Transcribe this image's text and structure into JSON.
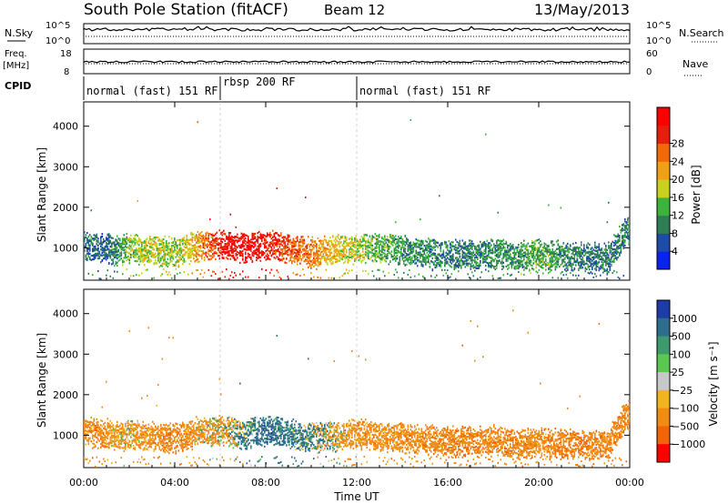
{
  "header": {
    "title": "South Pole Station (fitACF)",
    "beam": "Beam 12",
    "date": "13/May/2013"
  },
  "top_panels": {
    "nsky_label": "N.Sky",
    "nsearch_label": "N.Search",
    "n_ticks": [
      "10^5",
      "10^0"
    ],
    "freq_label_line1": "Freq.",
    "freq_label_line2": "[MHz]",
    "freq_ticks": [
      "18",
      "8"
    ],
    "nave_label": "Nave",
    "nave_ticks": [
      "60",
      "0"
    ],
    "cpid_label": "CPID",
    "cpid_segments": [
      {
        "label": "normal (fast) 151 RF",
        "start_hour": 0,
        "end_hour": 6
      },
      {
        "label": "rbsp 200 RF",
        "start_hour": 6,
        "end_hour": 12
      },
      {
        "label": "normal (fast) 151 RF",
        "start_hour": 12,
        "end_hour": 24
      }
    ]
  },
  "axes": {
    "ylabel": "Slant Range [km]",
    "xlabel": "Time UT",
    "x_ticks": [
      "00:00",
      "04:00",
      "08:00",
      "12:00",
      "16:00",
      "20:00",
      "00:00"
    ],
    "y_ticks": [
      "1000",
      "2000",
      "3000",
      "4000"
    ]
  },
  "power_colorbar": {
    "label": "Power [dB]",
    "ticks": [
      "4",
      "8",
      "12",
      "16",
      "20",
      "24",
      "28"
    ],
    "colors": [
      "#0a22ee",
      "#1e4aa8",
      "#2e7d55",
      "#3cb43c",
      "#c8d21e",
      "#f0a014",
      "#f06a0a",
      "#e61e0a",
      "#ff0000"
    ]
  },
  "velocity_colorbar": {
    "label": "Velocity [m s⁻¹]",
    "ticks": [
      "1000",
      "500",
      "100",
      "25",
      "−25",
      "−100",
      "−500",
      "−1000"
    ],
    "colors": [
      "#1e3ca8",
      "#2e6e8c",
      "#3c9a6e",
      "#5ac850",
      "#c8c8c8",
      "#f0b41e",
      "#f08c14",
      "#f0640a",
      "#ff0000"
    ]
  },
  "chart_data": [
    {
      "type": "heatmap",
      "title": "",
      "xlabel": "Time UT",
      "ylabel": "Slant Range [km]",
      "xlim": [
        0,
        24
      ],
      "ylim": [
        200,
        4600
      ],
      "colorbar": "Power [dB]",
      "clim": [
        0,
        32
      ],
      "series": [
        {
          "hours": [
            0.2,
            0.8,
            1.5,
            2.0,
            3.0,
            4.0,
            5.0,
            6.0,
            7.0,
            8.0,
            9.0,
            10.0,
            11.0,
            12.0,
            13.0,
            14.0,
            15.0,
            16.0,
            17.0,
            18.0,
            19.0,
            20.0,
            21.0,
            22.0,
            23.0,
            23.8
          ],
          "range_km": [
            1050,
            1000,
            950,
            1000,
            950,
            900,
            1050,
            1100,
            1000,
            1100,
            1000,
            900,
            950,
            1000,
            1000,
            950,
            900,
            850,
            850,
            900,
            800,
            850,
            800,
            800,
            750,
            1400
          ],
          "power_db": [
            8,
            6,
            10,
            14,
            16,
            14,
            20,
            28,
            30,
            28,
            24,
            22,
            18,
            16,
            12,
            10,
            10,
            8,
            8,
            10,
            10,
            12,
            10,
            8,
            8,
            8
          ]
        }
      ]
    },
    {
      "type": "heatmap",
      "title": "",
      "xlabel": "Time UT",
      "ylabel": "Slant Range [km]",
      "xlim": [
        0,
        24
      ],
      "ylim": [
        200,
        4600
      ],
      "colorbar": "Velocity [m s⁻¹]",
      "clim": [
        -1000,
        1000
      ],
      "series": [
        {
          "hours": [
            0.2,
            0.8,
            1.5,
            2.0,
            3.0,
            4.0,
            5.0,
            6.0,
            7.0,
            8.0,
            9.0,
            10.0,
            11.0,
            12.0,
            13.0,
            14.0,
            15.0,
            16.0,
            17.0,
            18.0,
            19.0,
            20.0,
            21.0,
            22.0,
            23.0,
            23.8
          ],
          "range_km": [
            1100,
            1050,
            1000,
            1050,
            1000,
            950,
            1100,
            1150,
            1050,
            1150,
            1050,
            950,
            1000,
            1050,
            1000,
            950,
            900,
            850,
            850,
            900,
            800,
            850,
            800,
            800,
            750,
            1500
          ],
          "velocity_ms": [
            -300,
            -300,
            -200,
            -200,
            -300,
            -400,
            -200,
            -150,
            100,
            300,
            200,
            100,
            -100,
            -300,
            -250,
            -300,
            -300,
            -350,
            -400,
            -300,
            -400,
            -300,
            -400,
            -400,
            -300,
            -400
          ]
        }
      ]
    }
  ]
}
